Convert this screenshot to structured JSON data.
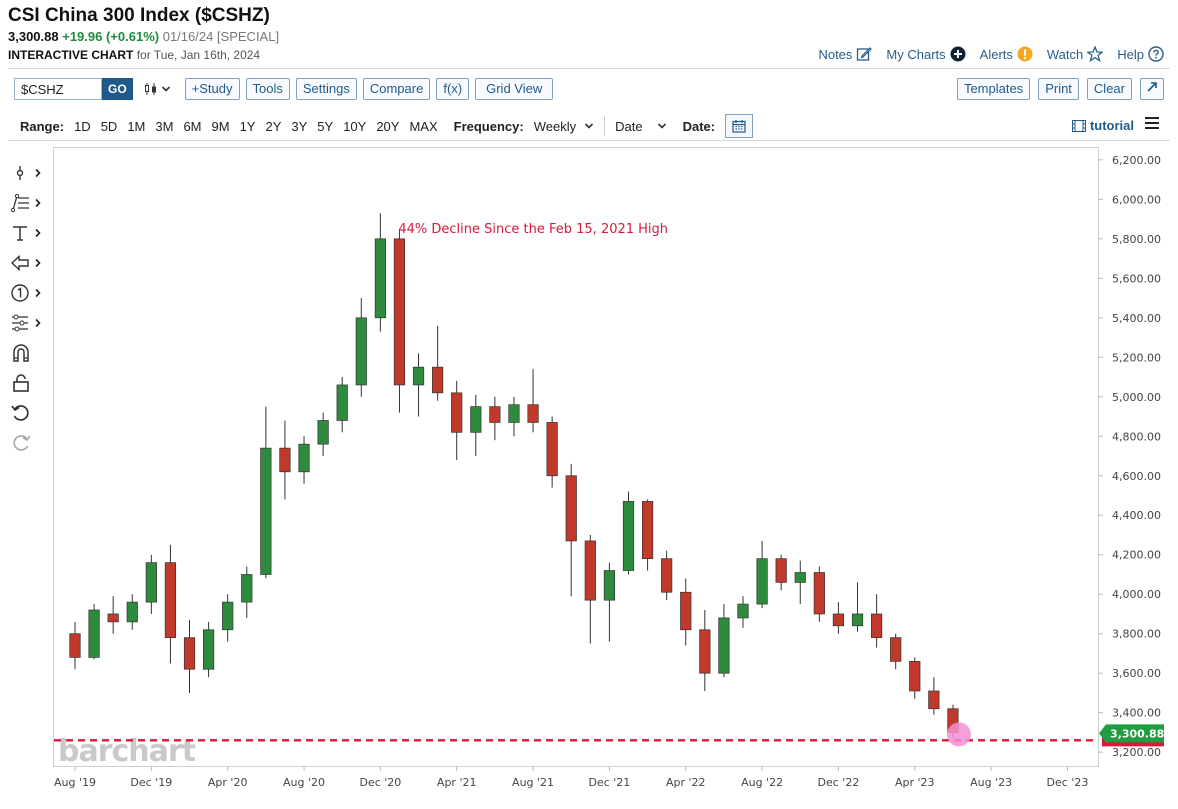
{
  "header": {
    "title": "CSI China 300 Index ($CSHZ)",
    "last": "3,300.88",
    "change": "+19.96 (+0.61%)",
    "stamp": "01/16/24 [SPECIAL]",
    "chart_label": "INTERACTIVE CHART",
    "chart_for": "for Tue, Jan 16th, 2024"
  },
  "toplinks": {
    "notes": "Notes",
    "my_charts": "My Charts",
    "alerts": "Alerts",
    "watch": "Watch",
    "help": "Help"
  },
  "toolbar": {
    "symbol_value": "$CSHZ",
    "go": "GO",
    "study": "+Study",
    "tools": "Tools",
    "settings": "Settings",
    "compare": "Compare",
    "fx": "f(x)",
    "grid_view": "Grid View",
    "templates": "Templates",
    "print": "Print",
    "clear": "Clear"
  },
  "rangebar": {
    "range_label": "Range:",
    "ranges": [
      "1D",
      "5D",
      "1M",
      "3M",
      "6M",
      "9M",
      "1Y",
      "2Y",
      "3Y",
      "5Y",
      "10Y",
      "20Y",
      "MAX"
    ],
    "frequency_label": "Frequency:",
    "frequency_value": "Weekly",
    "date_mode": "Date",
    "date_label": "Date:",
    "tutorial": "tutorial"
  },
  "icons": [
    "crosshair-icon",
    "fibonacci-icon",
    "text-icon",
    "arrow-icon",
    "number-marker-icon",
    "settings-tree-icon",
    "magnet-icon",
    "lock-icon",
    "undo-icon",
    "redo-icon",
    "edit-icon",
    "plus-circle-icon",
    "alert-icon",
    "star-icon",
    "help-icon",
    "calendar-icon",
    "film-icon",
    "menu-icon",
    "expand-icon",
    "candlestick-icon"
  ],
  "colors": {
    "up": "#2e8b3e",
    "down": "#c0392b",
    "annotation": "#d8193a",
    "support": "#d8193a",
    "price_tag": "#1f9d3f",
    "link": "#1f5a8b",
    "marker": "#f38fcf"
  },
  "watermark": "barchart",
  "chart_data": {
    "type": "candlestick",
    "frequency": "Weekly",
    "x_ticks": [
      "Aug '19",
      "Dec '19",
      "Apr '20",
      "Aug '20",
      "Dec '20",
      "Apr '21",
      "Aug '21",
      "Dec '21",
      "Apr '22",
      "Aug '22",
      "Dec '22",
      "Apr '23",
      "Aug '23",
      "Dec '23"
    ],
    "x_tick_pos": [
      0.0,
      4.0,
      8.0,
      12.0,
      16.0,
      20.0,
      24.0,
      28.0,
      32.0,
      36.0,
      40.0,
      44.0,
      48.0,
      52.0
    ],
    "y_ticks": [
      "6,200.00",
      "6,000.00",
      "5,800.00",
      "5,600.00",
      "5,400.00",
      "5,200.00",
      "5,000.00",
      "4,800.00",
      "4,600.00",
      "4,400.00",
      "4,200.00",
      "4,000.00",
      "3,800.00",
      "3,600.00",
      "3,400.00",
      "3,200.00"
    ],
    "ylim": [
      3130,
      6260
    ],
    "xlim": [
      -1.1,
      53.6
    ],
    "last_price": "3,300.88",
    "support_level": 3260,
    "annotation": "44% Decline Since the Feb 15, 2021 High",
    "candles_note": "monthly-resolution OHLC approximations of the weekly candles",
    "candles": [
      [
        3800,
        3860,
        3620,
        3680
      ],
      [
        3680,
        3950,
        3670,
        3920
      ],
      [
        3900,
        3990,
        3800,
        3860
      ],
      [
        3860,
        4000,
        3820,
        3960
      ],
      [
        3960,
        4200,
        3900,
        4160
      ],
      [
        4160,
        4250,
        3650,
        3780
      ],
      [
        3780,
        3870,
        3500,
        3620
      ],
      [
        3620,
        3860,
        3580,
        3820
      ],
      [
        3820,
        4000,
        3760,
        3960
      ],
      [
        3960,
        4140,
        3880,
        4100
      ],
      [
        4100,
        4950,
        4080,
        4740
      ],
      [
        4740,
        4880,
        4480,
        4620
      ],
      [
        4620,
        4800,
        4560,
        4760
      ],
      [
        4760,
        4920,
        4700,
        4880
      ],
      [
        4880,
        5100,
        4820,
        5060
      ],
      [
        5060,
        5500,
        5000,
        5400
      ],
      [
        5400,
        5930,
        5330,
        5800
      ],
      [
        5800,
        5850,
        4920,
        5060
      ],
      [
        5060,
        5220,
        4900,
        5150
      ],
      [
        5150,
        5360,
        4980,
        5020
      ],
      [
        5020,
        5080,
        4680,
        4820
      ],
      [
        4820,
        5010,
        4700,
        4950
      ],
      [
        4950,
        5000,
        4780,
        4870
      ],
      [
        4870,
        5000,
        4800,
        4960
      ],
      [
        4960,
        5140,
        4820,
        4870
      ],
      [
        4870,
        4900,
        4540,
        4600
      ],
      [
        4600,
        4660,
        3990,
        4270
      ],
      [
        4270,
        4300,
        3750,
        3970
      ],
      [
        3970,
        4160,
        3760,
        4120
      ],
      [
        4120,
        4520,
        4100,
        4470
      ],
      [
        4470,
        4480,
        4120,
        4180
      ],
      [
        4180,
        4220,
        3970,
        4010
      ],
      [
        4010,
        4080,
        3740,
        3820
      ],
      [
        3820,
        3920,
        3510,
        3600
      ],
      [
        3600,
        3950,
        3580,
        3880
      ],
      [
        3880,
        3990,
        3830,
        3950
      ],
      [
        3950,
        4270,
        3930,
        4180
      ],
      [
        4180,
        4200,
        4020,
        4060
      ],
      [
        4060,
        4170,
        3950,
        4110
      ],
      [
        4110,
        4140,
        3860,
        3900
      ],
      [
        3900,
        3960,
        3800,
        3840
      ],
      [
        3840,
        4060,
        3810,
        3900
      ],
      [
        3900,
        4000,
        3730,
        3780
      ],
      [
        3780,
        3800,
        3620,
        3660
      ],
      [
        3660,
        3680,
        3470,
        3510
      ],
      [
        3510,
        3580,
        3390,
        3420
      ],
      [
        3420,
        3440,
        3270,
        3300
      ]
    ]
  }
}
